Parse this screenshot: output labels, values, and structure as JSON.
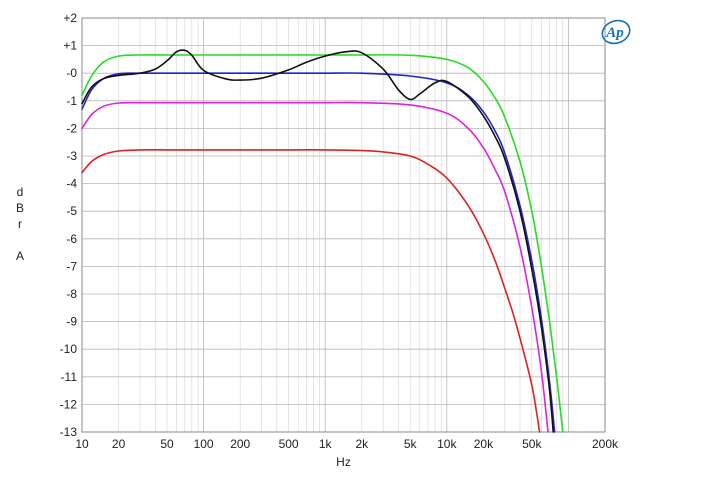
{
  "chart_data": {
    "type": "line",
    "xlabel": "Hz",
    "ylabel": "dBr A",
    "ylabel_lines": [
      "d",
      "B",
      "r",
      "",
      "A"
    ],
    "xscale": "log",
    "xlim": [
      10,
      200000
    ],
    "ylim": [
      -13,
      2
    ],
    "grid": true,
    "x_ticks": [
      {
        "value": 10,
        "label": "10"
      },
      {
        "value": 20,
        "label": "20"
      },
      {
        "value": 50,
        "label": "50"
      },
      {
        "value": 100,
        "label": "100"
      },
      {
        "value": 200,
        "label": "200"
      },
      {
        "value": 500,
        "label": "500"
      },
      {
        "value": 1000,
        "label": "1k"
      },
      {
        "value": 2000,
        "label": "2k"
      },
      {
        "value": 5000,
        "label": "5k"
      },
      {
        "value": 10000,
        "label": "10k"
      },
      {
        "value": 20000,
        "label": "20k"
      },
      {
        "value": 50000,
        "label": "50k"
      },
      {
        "value": 200000,
        "label": "200k"
      }
    ],
    "y_ticks": [
      {
        "value": 2,
        "label": "+2"
      },
      {
        "value": 1,
        "label": "+1"
      },
      {
        "value": 0,
        "label": "-0"
      },
      {
        "value": -1,
        "label": "-1"
      },
      {
        "value": -2,
        "label": "-2"
      },
      {
        "value": -3,
        "label": "-3"
      },
      {
        "value": -4,
        "label": "-4"
      },
      {
        "value": -5,
        "label": "-5"
      },
      {
        "value": -6,
        "label": "-6"
      },
      {
        "value": -7,
        "label": "-7"
      },
      {
        "value": -8,
        "label": "-8"
      },
      {
        "value": -9,
        "label": "-9"
      },
      {
        "value": -10,
        "label": "-10"
      },
      {
        "value": -11,
        "label": "-11"
      },
      {
        "value": -12,
        "label": "-12"
      },
      {
        "value": -13,
        "label": "-13"
      }
    ],
    "series": [
      {
        "color": "#22dd22",
        "x": [
          10,
          12,
          15,
          20,
          30,
          50,
          100,
          200,
          500,
          1000,
          2000,
          5000,
          10000,
          15000,
          20000,
          25000,
          30000,
          40000,
          50000,
          60000,
          70000,
          80000,
          90000
        ],
        "y": [
          -0.8,
          -0.1,
          0.4,
          0.62,
          0.66,
          0.66,
          0.66,
          0.66,
          0.66,
          0.66,
          0.66,
          0.65,
          0.5,
          0.2,
          -0.3,
          -0.9,
          -1.6,
          -3.2,
          -5.0,
          -7.0,
          -9.0,
          -11.0,
          -13.0
        ]
      },
      {
        "color": "#2222cc",
        "x": [
          10,
          12,
          15,
          20,
          30,
          50,
          100,
          200,
          500,
          1000,
          2000,
          5000,
          10000,
          15000,
          20000,
          25000,
          30000,
          40000,
          50000,
          60000,
          70000,
          77000
        ],
        "y": [
          -1.3,
          -0.6,
          -0.2,
          -0.02,
          0.0,
          0.0,
          0.0,
          0.0,
          0.0,
          0.0,
          0.0,
          -0.1,
          -0.35,
          -0.8,
          -1.4,
          -2.1,
          -2.9,
          -4.8,
          -6.8,
          -8.9,
          -11.2,
          -13.0
        ]
      },
      {
        "color": "#111111",
        "x": [
          10,
          12,
          15,
          20,
          30,
          40,
          50,
          60,
          70,
          80,
          100,
          150,
          200,
          300,
          500,
          700,
          1000,
          1500,
          2000,
          3000,
          4000,
          5000,
          6000,
          8000,
          10000,
          15000,
          20000,
          25000,
          30000,
          40000,
          50000,
          60000,
          70000,
          75000
        ],
        "y": [
          -1.1,
          -0.5,
          -0.2,
          -0.08,
          0.0,
          0.15,
          0.45,
          0.78,
          0.83,
          0.65,
          0.1,
          -0.2,
          -0.25,
          -0.18,
          0.12,
          0.4,
          0.62,
          0.78,
          0.74,
          0.15,
          -0.6,
          -0.95,
          -0.75,
          -0.35,
          -0.3,
          -0.85,
          -1.55,
          -2.3,
          -3.1,
          -5.0,
          -7.1,
          -9.2,
          -11.5,
          -13.0
        ]
      },
      {
        "color": "#dd22dd",
        "x": [
          10,
          12,
          15,
          20,
          30,
          50,
          100,
          200,
          500,
          1000,
          2000,
          5000,
          10000,
          15000,
          20000,
          25000,
          30000,
          40000,
          50000,
          60000,
          68000
        ],
        "y": [
          -2.0,
          -1.5,
          -1.2,
          -1.08,
          -1.07,
          -1.07,
          -1.07,
          -1.07,
          -1.07,
          -1.07,
          -1.07,
          -1.15,
          -1.45,
          -2.0,
          -2.7,
          -3.5,
          -4.3,
          -6.3,
          -8.5,
          -10.8,
          -13.0
        ]
      },
      {
        "color": "#dd2222",
        "x": [
          10,
          12,
          15,
          20,
          30,
          50,
          100,
          200,
          500,
          1000,
          2000,
          3000,
          5000,
          7000,
          10000,
          15000,
          20000,
          25000,
          30000,
          35000,
          40000,
          50000,
          58000
        ],
        "y": [
          -3.6,
          -3.2,
          -2.95,
          -2.82,
          -2.78,
          -2.78,
          -2.78,
          -2.78,
          -2.78,
          -2.78,
          -2.8,
          -2.85,
          -3.0,
          -3.3,
          -3.8,
          -4.8,
          -5.8,
          -6.8,
          -7.8,
          -8.7,
          -9.6,
          -11.3,
          -13.0
        ]
      }
    ]
  },
  "logo": {
    "text": "Ap",
    "color": "#1a6fb8"
  }
}
